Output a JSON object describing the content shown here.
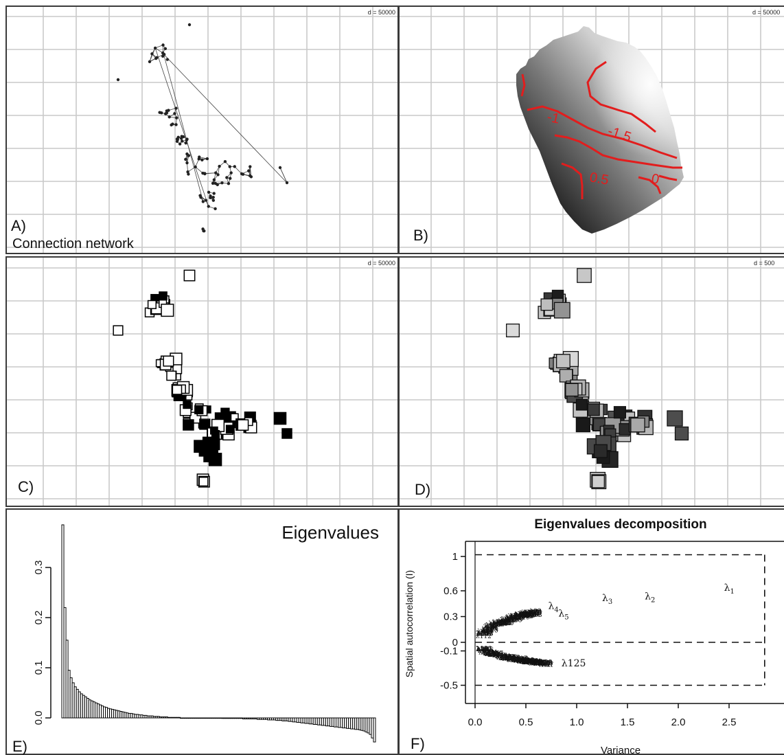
{
  "panels": {
    "a": {
      "letter": "A)",
      "caption": "Connection network",
      "scale": "d = 50000"
    },
    "b": {
      "letter": "B)",
      "scale": "d = 50000"
    },
    "c": {
      "letter": "C)",
      "scale": "d = 50000"
    },
    "d": {
      "letter": "D)",
      "scale": "d = 500"
    },
    "e": {
      "letter": "E)"
    },
    "f": {
      "letter": "F)"
    }
  },
  "contour_levels": [
    "-1",
    "-1.5",
    "0.5",
    "0"
  ],
  "colors": {
    "contour": "#e21d1d",
    "grid": "#c9c9c9",
    "frame": "#3a3a3a"
  },
  "chart_data": [
    {
      "type": "bar",
      "title": "Eigenvalues",
      "xlabel": "",
      "ylabel": "",
      "ylim": [
        -0.03,
        0.39
      ],
      "yticks": [
        0.0,
        0.1,
        0.2,
        0.3
      ],
      "ytick_labels": [
        "0.0",
        "0.1",
        "0.2",
        "0.3"
      ],
      "values": [
        0.385,
        0.22,
        0.155,
        0.095,
        0.08,
        0.07,
        0.062,
        0.057,
        0.052,
        0.048,
        0.045,
        0.042,
        0.039,
        0.036,
        0.034,
        0.032,
        0.03,
        0.028,
        0.026,
        0.024,
        0.022,
        0.021,
        0.019,
        0.018,
        0.017,
        0.016,
        0.015,
        0.014,
        0.013,
        0.012,
        0.011,
        0.01,
        0.009,
        0.009,
        0.008,
        0.007,
        0.007,
        0.006,
        0.006,
        0.005,
        0.005,
        0.004,
        0.004,
        0.004,
        0.003,
        0.003,
        0.003,
        0.002,
        0.002,
        0.002,
        0.002,
        0.001,
        0.001,
        0.001,
        0.001,
        0.001,
        0.001,
        0.0,
        0.0,
        0.0,
        0.0,
        0.0,
        0.0,
        0.0,
        0.0,
        0.0,
        0.0,
        0.0,
        0.0,
        0.0,
        0.0,
        0.0,
        0.0,
        0.0,
        0.0,
        0.0,
        0.0,
        -0.001,
        -0.001,
        -0.001,
        -0.001,
        -0.001,
        -0.001,
        -0.001,
        -0.001,
        -0.001,
        -0.001,
        -0.002,
        -0.002,
        -0.002,
        -0.002,
        -0.002,
        -0.002,
        -0.002,
        -0.003,
        -0.003,
        -0.003,
        -0.003,
        -0.003,
        -0.004,
        -0.004,
        -0.004,
        -0.004,
        -0.005,
        -0.005,
        -0.005,
        -0.006,
        -0.006,
        -0.006,
        -0.007,
        -0.007,
        -0.008,
        -0.008,
        -0.009,
        -0.009,
        -0.01,
        -0.01,
        -0.011,
        -0.011,
        -0.012,
        -0.012,
        -0.013,
        -0.013,
        -0.014,
        -0.014,
        -0.015,
        -0.015,
        -0.016,
        -0.016,
        -0.017,
        -0.017,
        -0.018,
        -0.018,
        -0.019,
        -0.019,
        -0.02,
        -0.02,
        -0.021,
        -0.021,
        -0.022,
        -0.022,
        -0.023,
        -0.023,
        -0.024,
        -0.025,
        -0.026,
        -0.028,
        -0.03,
        -0.033,
        -0.04,
        -0.048
      ]
    },
    {
      "type": "scatter",
      "title": "Eigenvalues decomposition",
      "xlabel": "Variance",
      "ylabel": "Spatial autocorrelation (I)",
      "xlim": [
        -0.05,
        2.95
      ],
      "ylim": [
        -0.6,
        1.12
      ],
      "xticks": [
        0.0,
        0.5,
        1.0,
        1.5,
        2.0,
        2.5
      ],
      "xtick_labels": [
        "0.0",
        "0.5",
        "1.0",
        "1.5",
        "2.0",
        "2.5"
      ],
      "yticks": [
        1.0,
        0.6,
        0.3,
        0.0,
        -0.1,
        -0.5
      ],
      "ytick_labels": [
        "1",
        "0.6",
        "0.3",
        "0",
        "-0.1",
        "-0.5"
      ],
      "reference_lines": {
        "horizontal": [
          1.02,
          0.0,
          -0.5
        ],
        "vertical": [
          2.85
        ]
      },
      "labeled_points": [
        {
          "label": "λ",
          "sub": "1",
          "x": 2.45,
          "y": 0.6
        },
        {
          "label": "λ",
          "sub": "2",
          "x": 1.67,
          "y": 0.5
        },
        {
          "label": "λ",
          "sub": "3",
          "x": 1.25,
          "y": 0.48
        },
        {
          "label": "λ",
          "sub": "4",
          "x": 0.72,
          "y": 0.39
        },
        {
          "label": "λ",
          "sub": "5",
          "x": 0.82,
          "y": 0.3
        },
        {
          "label": "λ125",
          "sub": "",
          "x": 0.85,
          "y": -0.28
        }
      ]
    }
  ]
}
